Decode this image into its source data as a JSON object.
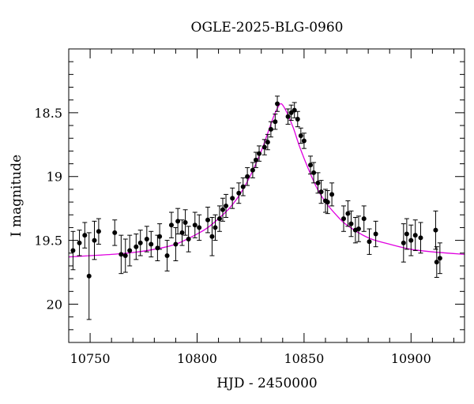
{
  "chart_data": {
    "type": "scatter",
    "title": "OGLE-2025-BLG-0960",
    "xlabel": "HJD - 2450000",
    "ylabel": "I magnitude",
    "xlim": [
      10740,
      10925
    ],
    "ylim": [
      20.3,
      18.0
    ],
    "y_inverted": true,
    "grid": false,
    "legend": "none",
    "x_major_ticks": [
      10750,
      10800,
      10850,
      10900
    ],
    "x_tick_labels": [
      "10750",
      "10800",
      "10850",
      "10900"
    ],
    "y_major_ticks": [
      18.5,
      19,
      19.5,
      20
    ],
    "y_tick_labels": [
      "18.5",
      "19",
      "19.5",
      "20"
    ],
    "colors": {
      "points": "#000000",
      "model": "#e000e0",
      "axes": "#000000"
    },
    "series": [
      {
        "kind": "points-with-errorbars",
        "x": [
          10742.0,
          10745.0,
          10747.5,
          10749.5,
          10752.0,
          10754.0,
          10761.5,
          10764.5,
          10766.5,
          10768.5,
          10771.5,
          10773.5,
          10776.5,
          10778.5,
          10781.5,
          10782.5,
          10786.0,
          10788.0,
          10790.0,
          10791.0,
          10793.0,
          10794.5,
          10796.0,
          10799.0,
          10801.0,
          10805.0,
          10807.0,
          10808.5,
          10810.5,
          10812.0,
          10813.5,
          10816.5,
          10819.5,
          10821.5,
          10823.5,
          10826.0,
          10827.5,
          10829.0,
          10831.5,
          10833.0,
          10834.5,
          10836.5,
          10837.5,
          10842.5,
          10844.0,
          10845.5,
          10847.0,
          10848.5,
          10850.0,
          10853.0,
          10854.5,
          10856.5,
          10858.0,
          10860.0,
          10861.0,
          10863.0,
          10868.5,
          10870.5,
          10872.0,
          10874.0,
          10875.5,
          10878.0,
          10880.5,
          10883.5,
          10896.5,
          10898.0,
          10900.0,
          10902.0,
          10904.5,
          10911.5,
          10912.0,
          10913.5
        ],
        "y": [
          19.58,
          19.52,
          19.46,
          19.78,
          19.5,
          19.43,
          19.44,
          19.61,
          19.62,
          19.58,
          19.55,
          19.52,
          19.49,
          19.53,
          19.56,
          19.47,
          19.62,
          19.38,
          19.53,
          19.35,
          19.44,
          19.36,
          19.49,
          19.38,
          19.4,
          19.34,
          19.47,
          19.4,
          19.33,
          19.26,
          19.23,
          19.17,
          19.13,
          19.08,
          19.0,
          18.95,
          18.87,
          18.82,
          18.77,
          18.73,
          18.63,
          18.57,
          18.43,
          18.53,
          18.5,
          18.48,
          18.55,
          18.68,
          18.72,
          18.91,
          18.97,
          19.05,
          19.12,
          19.19,
          19.2,
          19.14,
          19.33,
          19.29,
          19.37,
          19.42,
          19.41,
          19.33,
          19.51,
          19.45,
          19.52,
          19.45,
          19.5,
          19.46,
          19.48,
          19.42,
          19.67,
          19.64
        ],
        "err": [
          0.15,
          0.1,
          0.1,
          0.34,
          0.15,
          0.1,
          0.1,
          0.15,
          0.13,
          0.12,
          0.1,
          0.1,
          0.1,
          0.1,
          0.1,
          0.1,
          0.12,
          0.1,
          0.13,
          0.1,
          0.1,
          0.1,
          0.1,
          0.1,
          0.1,
          0.1,
          0.15,
          0.1,
          0.1,
          0.09,
          0.09,
          0.08,
          0.08,
          0.07,
          0.07,
          0.06,
          0.06,
          0.06,
          0.06,
          0.06,
          0.06,
          0.06,
          0.06,
          0.06,
          0.06,
          0.06,
          0.06,
          0.06,
          0.06,
          0.07,
          0.08,
          0.08,
          0.09,
          0.09,
          0.09,
          0.09,
          0.1,
          0.1,
          0.1,
          0.1,
          0.1,
          0.1,
          0.1,
          0.1,
          0.15,
          0.12,
          0.12,
          0.12,
          0.12,
          0.15,
          0.12,
          0.12
        ]
      },
      {
        "kind": "model-curve",
        "x": [
          10740,
          10750,
          10760,
          10770,
          10780,
          10790,
          10800,
          10805,
          10810,
          10815,
          10820,
          10825,
          10830,
          10833,
          10836,
          10838,
          10839,
          10840,
          10842,
          10845,
          10848,
          10852,
          10856,
          10860,
          10865,
          10870,
          10880,
          10890,
          10900,
          10910,
          10925
        ],
        "y": [
          19.63,
          19.62,
          19.61,
          19.595,
          19.57,
          19.53,
          19.45,
          19.4,
          19.33,
          19.25,
          19.14,
          18.99,
          18.8,
          18.66,
          18.52,
          18.45,
          18.43,
          18.44,
          18.5,
          18.62,
          18.77,
          18.94,
          19.09,
          19.2,
          19.3,
          19.38,
          19.48,
          19.53,
          19.57,
          19.59,
          19.61
        ]
      }
    ]
  }
}
